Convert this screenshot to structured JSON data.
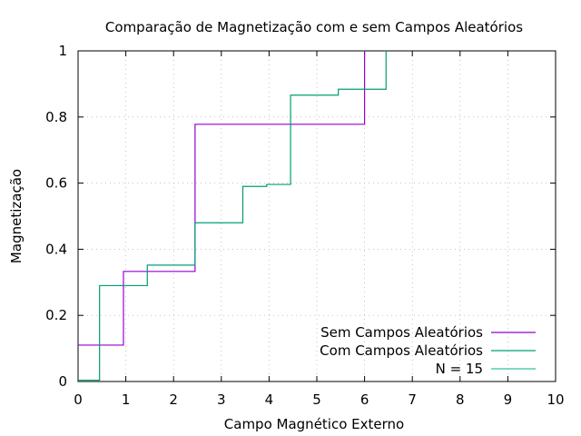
{
  "chart_data": {
    "type": "line",
    "title": "Comparação de Magnetização com e sem Campos Aleatórios",
    "xlabel": "Campo Magnético Externo",
    "ylabel": "Magnetização",
    "xlim": [
      0,
      10
    ],
    "ylim": [
      0,
      1
    ],
    "xticks": [
      0,
      1,
      2,
      3,
      4,
      5,
      6,
      7,
      8,
      9,
      10
    ],
    "yticks": [
      0,
      0.2,
      0.4,
      0.6,
      0.8,
      1
    ],
    "xtick_labels": [
      "0",
      "1",
      "2",
      "3",
      "4",
      "5",
      "6",
      "7",
      "8",
      "9",
      "10"
    ],
    "ytick_labels": [
      "0",
      "0.2",
      "0.4",
      "0.6",
      "0.8",
      "1"
    ],
    "grid": true,
    "legend_position": "bottom-right",
    "legend_title": "N = 15",
    "series": [
      {
        "name": "Sem Campos Aleatórios",
        "color": "#9400d3",
        "step": true,
        "x": [
          0,
          0.95,
          0.95,
          2.45,
          2.45,
          6.0,
          6.0
        ],
        "y": [
          0.11,
          0.11,
          0.333,
          0.333,
          0.778,
          0.778,
          1.0
        ]
      },
      {
        "name": "Com Campos Aleatórios",
        "color": "#009e73",
        "step": true,
        "x": [
          0,
          0.45,
          0.45,
          1.45,
          1.45,
          2.45,
          2.45,
          3.45,
          3.45,
          3.95,
          3.95,
          4.45,
          4.45,
          5.45,
          5.45,
          6.45,
          6.45
        ],
        "y": [
          0.004,
          0.004,
          0.29,
          0.29,
          0.352,
          0.352,
          0.48,
          0.48,
          0.59,
          0.59,
          0.596,
          0.596,
          0.866,
          0.866,
          0.884,
          0.884,
          1.0
        ]
      }
    ],
    "legend_colors": [
      "#9400d3",
      "#009e73",
      "#2ec4a0"
    ]
  }
}
